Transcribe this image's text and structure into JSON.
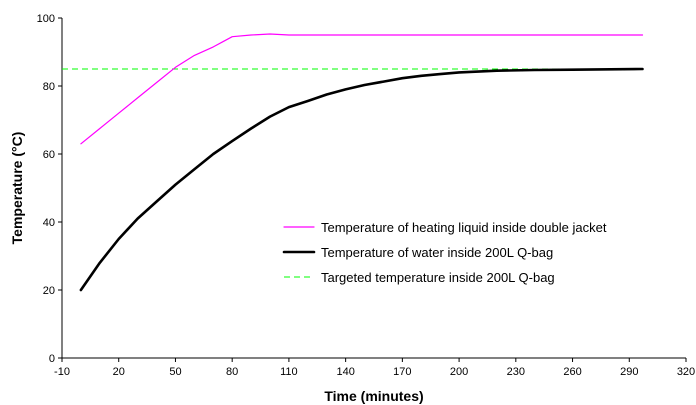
{
  "chart_data": {
    "type": "line",
    "xlabel": "Time (minutes)",
    "ylabel": "Temperature (°C)",
    "xlim": [
      -10,
      320
    ],
    "ylim": [
      0,
      100
    ],
    "xticks": [
      -10,
      20,
      50,
      80,
      110,
      140,
      170,
      200,
      230,
      260,
      290,
      320
    ],
    "yticks": [
      0,
      20,
      40,
      60,
      80,
      100
    ],
    "grid": false,
    "legend_position": "right",
    "series": [
      {
        "name": "Temperature of heating liquid inside double jacket",
        "color": "#ff00ff",
        "style": "solid-thin",
        "x": [
          0,
          10,
          20,
          30,
          40,
          50,
          60,
          70,
          75,
          80,
          90,
          100,
          110,
          150,
          200,
          250,
          297
        ],
        "y": [
          63,
          67.5,
          72,
          76.5,
          81,
          85.5,
          89,
          91.5,
          93,
          94.5,
          95,
          95.3,
          95,
          95,
          95,
          95,
          95
        ]
      },
      {
        "name": "Temperature of water inside 200L Q-bag",
        "color": "#000000",
        "style": "solid-thick",
        "x": [
          0,
          10,
          20,
          30,
          40,
          50,
          60,
          70,
          80,
          90,
          100,
          110,
          120,
          130,
          140,
          150,
          160,
          170,
          180,
          190,
          200,
          220,
          240,
          260,
          280,
          297
        ],
        "y": [
          20,
          28,
          35,
          41,
          46,
          51,
          55.5,
          60,
          63.8,
          67.5,
          71,
          73.8,
          75.6,
          77.5,
          79,
          80.3,
          81.3,
          82.3,
          83,
          83.5,
          84,
          84.5,
          84.7,
          84.8,
          84.9,
          85
        ]
      },
      {
        "name": "Targeted temperature inside 200L Q-bag",
        "color": "#00ff00",
        "style": "dashed",
        "x": [
          -10,
          297
        ],
        "y": [
          85,
          85
        ]
      }
    ]
  }
}
